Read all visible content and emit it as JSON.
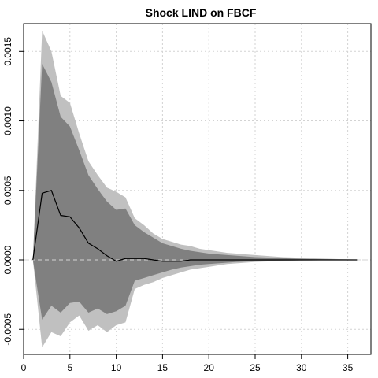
{
  "chart_data": {
    "type": "area",
    "title": "Shock LIND on FBCF",
    "xlabel": "",
    "ylabel": "",
    "xlim": [
      0,
      37.5
    ],
    "ylim": [
      -0.00068,
      0.0017
    ],
    "x_ticks": [
      0,
      5,
      10,
      15,
      20,
      25,
      30,
      35
    ],
    "x_tick_labels": [
      "0",
      "5",
      "10",
      "15",
      "20",
      "25",
      "30",
      "35"
    ],
    "y_ticks": [
      -0.0005,
      0.0,
      0.0005,
      0.001,
      0.0015
    ],
    "y_tick_labels": [
      "-0.0005",
      "0.0000",
      "0.0005",
      "0.0010",
      "0.0015"
    ],
    "grid": true,
    "reference_line": 0,
    "x": [
      1,
      2,
      3,
      4,
      5,
      6,
      7,
      8,
      9,
      10,
      11,
      12,
      13,
      14,
      15,
      16,
      17,
      18,
      19,
      20,
      21,
      22,
      23,
      24,
      25,
      26,
      27,
      28,
      29,
      30,
      31,
      32,
      33,
      34,
      35,
      36
    ],
    "series": [
      {
        "role": "response",
        "color": "#000000",
        "values": [
          0.0,
          0.00048,
          0.0005,
          0.00032,
          0.00031,
          0.00023,
          0.00012,
          8e-05,
          3e-05,
          -1e-05,
          1e-05,
          1e-05,
          1e-05,
          0.0,
          -1e-05,
          -1e-05,
          -1e-05,
          0.0,
          0.0,
          0.0,
          0.0,
          0.0,
          0.0,
          0.0,
          0.0,
          0.0,
          0.0,
          0.0,
          0.0,
          0.0,
          0.0,
          0.0,
          0.0,
          0.0,
          0.0,
          0.0
        ]
      }
    ],
    "bands": [
      {
        "role": "outer",
        "color": "#c0c0c0",
        "upper": [
          0.0,
          0.00165,
          0.0015,
          0.00118,
          0.00113,
          0.00091,
          0.00071,
          0.00061,
          0.00052,
          0.00049,
          0.00045,
          0.0003,
          0.00025,
          0.00019,
          0.00015,
          0.00013,
          0.00011,
          0.0001,
          8e-05,
          7e-05,
          6e-05,
          5e-05,
          4.5e-05,
          4e-05,
          3.5e-05,
          3e-05,
          2.5e-05,
          2e-05,
          1.8e-05,
          1.5e-05,
          1.2e-05,
          1e-05,
          8e-06,
          6e-06,
          4e-06,
          2e-06
        ],
        "lower": [
          0.0,
          -0.00063,
          -0.00052,
          -0.00055,
          -0.00045,
          -0.0004,
          -0.00051,
          -0.00047,
          -0.00052,
          -0.00047,
          -0.00045,
          -0.00021,
          -0.00018,
          -0.00016,
          -0.00013,
          -0.00011,
          -9e-05,
          -7e-05,
          -6e-05,
          -5e-05,
          -4e-05,
          -3e-05,
          -2.5e-05,
          -2e-05,
          -1.5e-05,
          -1.2e-05,
          -1e-05,
          -8e-06,
          -6e-06,
          -5e-06,
          -4e-06,
          -3e-06,
          -2e-06,
          -2e-06,
          -1e-06,
          -1e-06
        ]
      },
      {
        "role": "inner",
        "color": "#808080",
        "upper": [
          0.0,
          0.00141,
          0.00128,
          0.00103,
          0.00096,
          0.00079,
          0.00061,
          0.00051,
          0.00042,
          0.00036,
          0.00037,
          0.00025,
          0.0002,
          0.00016,
          0.00012,
          0.0001,
          8e-05,
          6.5e-05,
          5.5e-05,
          4.5e-05,
          4e-05,
          3.5e-05,
          3e-05,
          2.5e-05,
          2e-05,
          1.8e-05,
          1.5e-05,
          1.2e-05,
          1e-05,
          8e-06,
          6e-06,
          5e-06,
          4e-06,
          3e-06,
          2e-06,
          1e-06
        ],
        "lower": [
          0.0,
          -0.00043,
          -0.00033,
          -0.00038,
          -0.00031,
          -0.0003,
          -0.00038,
          -0.00035,
          -0.00039,
          -0.00037,
          -0.00033,
          -0.00015,
          -0.00013,
          -0.00011,
          -9e-05,
          -7e-05,
          -5.5e-05,
          -4.5e-05,
          -3.5e-05,
          -3e-05,
          -2.5e-05,
          -2e-05,
          -1.5e-05,
          -1.2e-05,
          -1e-05,
          -8e-06,
          -6e-06,
          -5e-06,
          -4e-06,
          -3e-06,
          -2e-06,
          -2e-06,
          -1e-06,
          -1e-06,
          -1e-06,
          0.0
        ]
      }
    ]
  }
}
